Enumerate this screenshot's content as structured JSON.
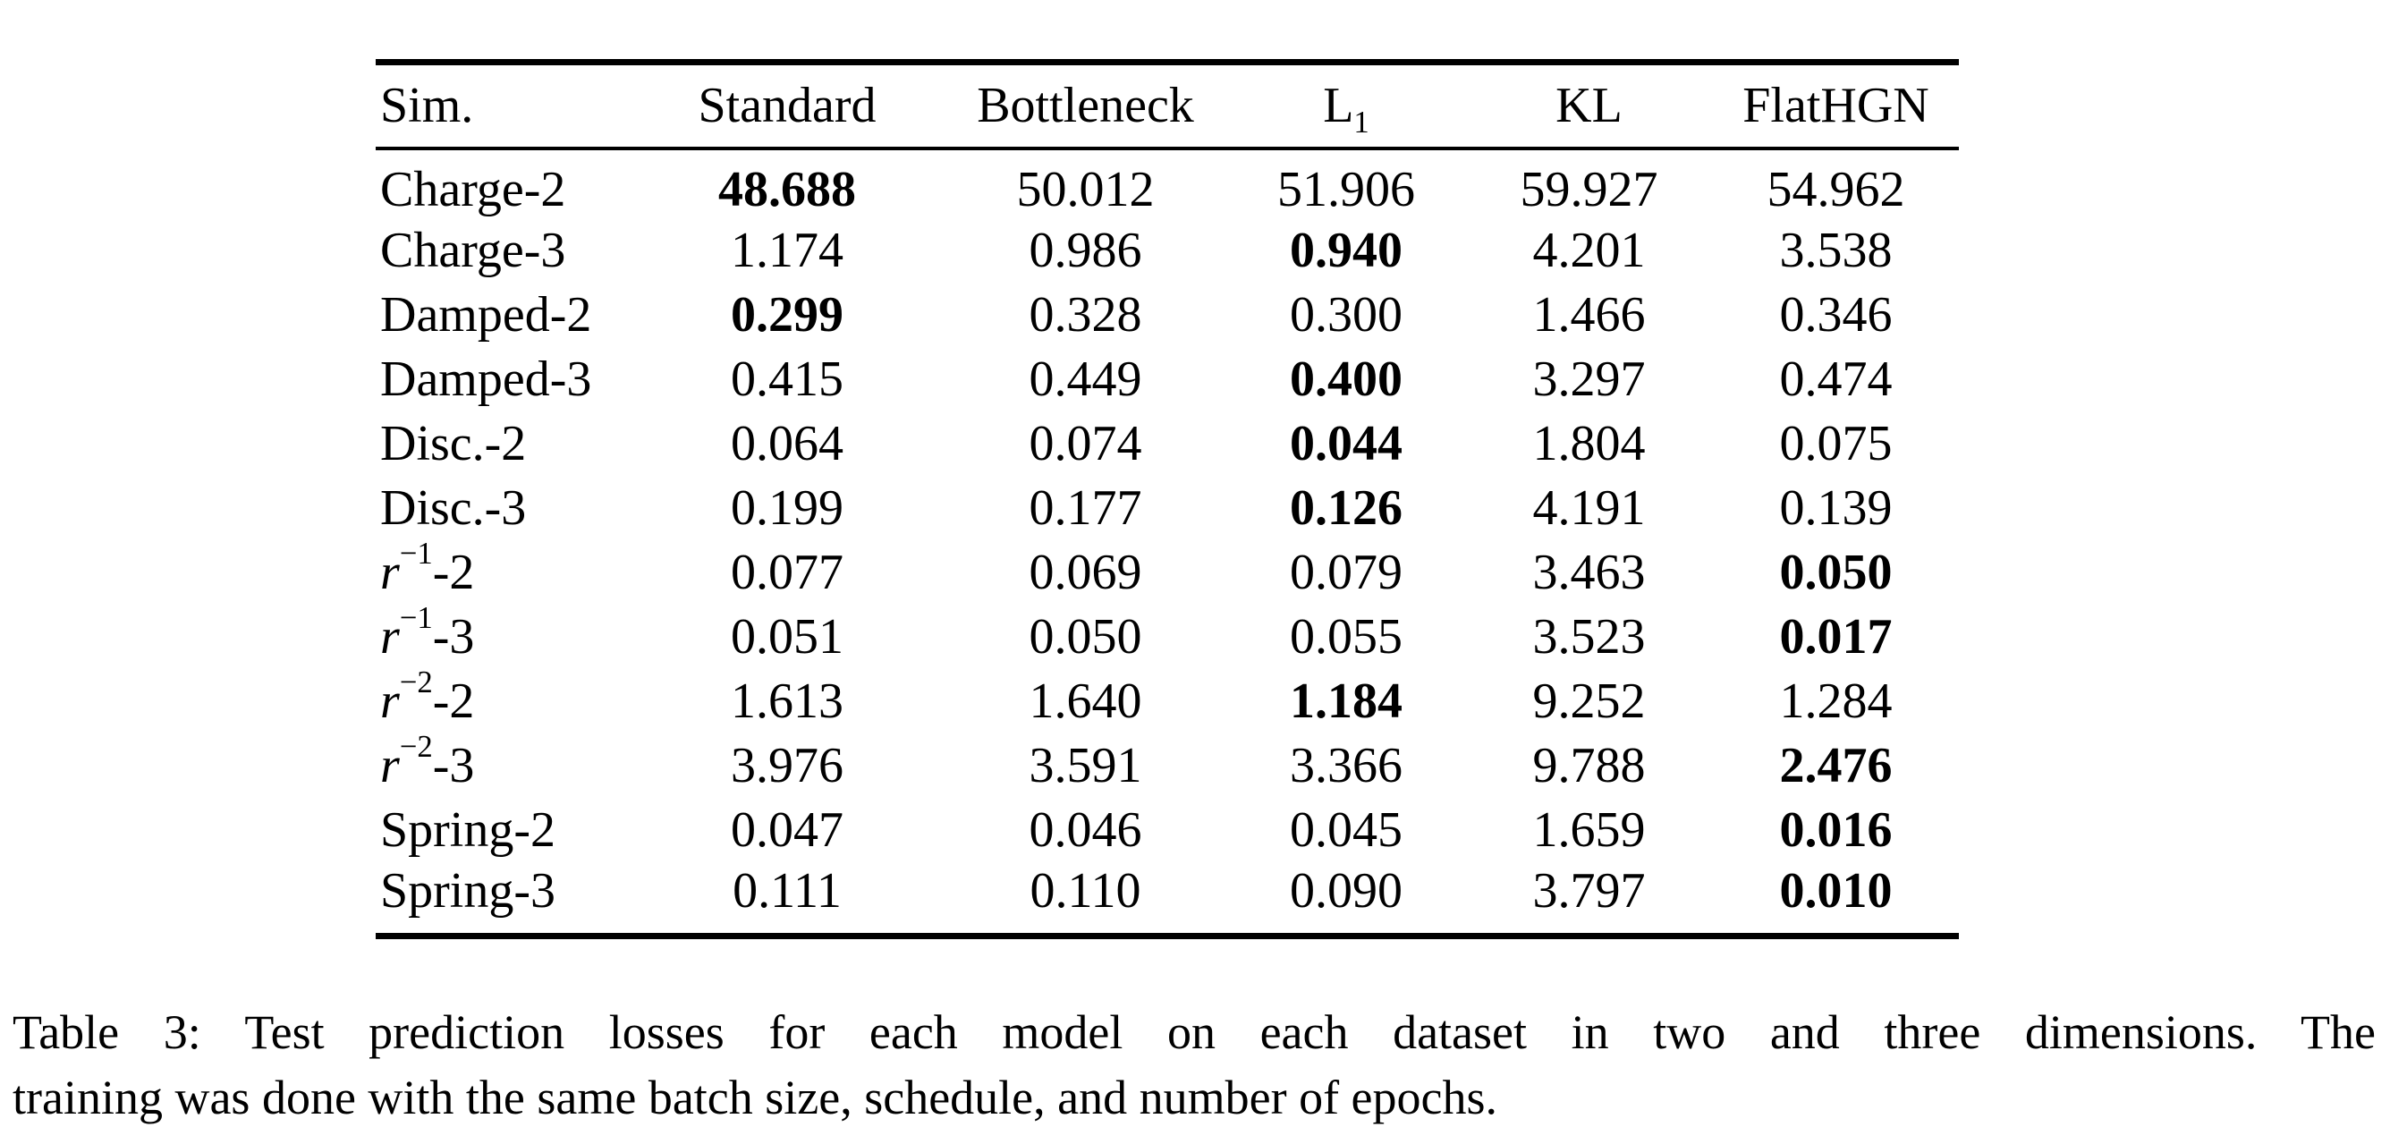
{
  "colors": {
    "text": "#000000",
    "background": "#ffffff"
  },
  "table": {
    "columns": [
      {
        "text": "Sim."
      },
      {
        "text": "Standard"
      },
      {
        "text": "Bottleneck"
      },
      {
        "text": "L",
        "sub": "1"
      },
      {
        "text": "KL"
      },
      {
        "text": "FlatHGN"
      }
    ],
    "rows": [
      {
        "label": {
          "text": "Charge-2"
        },
        "values": [
          {
            "v": "48.688",
            "bold": true
          },
          {
            "v": "50.012"
          },
          {
            "v": "51.906"
          },
          {
            "v": "59.927"
          },
          {
            "v": "54.962"
          }
        ]
      },
      {
        "label": {
          "text": "Charge-3"
        },
        "values": [
          {
            "v": "1.174"
          },
          {
            "v": "0.986"
          },
          {
            "v": "0.940",
            "bold": true
          },
          {
            "v": "4.201"
          },
          {
            "v": "3.538"
          }
        ]
      },
      {
        "label": {
          "text": "Damped-2"
        },
        "values": [
          {
            "v": "0.299",
            "bold": true
          },
          {
            "v": "0.328"
          },
          {
            "v": "0.300"
          },
          {
            "v": "1.466"
          },
          {
            "v": "0.346"
          }
        ]
      },
      {
        "label": {
          "text": "Damped-3"
        },
        "values": [
          {
            "v": "0.415"
          },
          {
            "v": "0.449"
          },
          {
            "v": "0.400",
            "bold": true
          },
          {
            "v": "3.297"
          },
          {
            "v": "0.474"
          }
        ]
      },
      {
        "label": {
          "text": "Disc.-2"
        },
        "values": [
          {
            "v": "0.064"
          },
          {
            "v": "0.074"
          },
          {
            "v": "0.044",
            "bold": true
          },
          {
            "v": "1.804"
          },
          {
            "v": "0.075"
          }
        ]
      },
      {
        "label": {
          "text": "Disc.-3"
        },
        "values": [
          {
            "v": "0.199"
          },
          {
            "v": "0.177"
          },
          {
            "v": "0.126",
            "bold": true
          },
          {
            "v": "4.191"
          },
          {
            "v": "0.139"
          }
        ]
      },
      {
        "label": {
          "text": "r",
          "italic": true,
          "sup": "−1",
          "post": "-2"
        },
        "values": [
          {
            "v": "0.077"
          },
          {
            "v": "0.069"
          },
          {
            "v": "0.079"
          },
          {
            "v": "3.463"
          },
          {
            "v": "0.050",
            "bold": true
          }
        ]
      },
      {
        "label": {
          "text": "r",
          "italic": true,
          "sup": "−1",
          "post": "-3"
        },
        "values": [
          {
            "v": "0.051"
          },
          {
            "v": "0.050"
          },
          {
            "v": "0.055"
          },
          {
            "v": "3.523"
          },
          {
            "v": "0.017",
            "bold": true
          }
        ]
      },
      {
        "label": {
          "text": "r",
          "italic": true,
          "sup": "−2",
          "post": "-2"
        },
        "values": [
          {
            "v": "1.613"
          },
          {
            "v": "1.640"
          },
          {
            "v": "1.184",
            "bold": true
          },
          {
            "v": "9.252"
          },
          {
            "v": "1.284"
          }
        ]
      },
      {
        "label": {
          "text": "r",
          "italic": true,
          "sup": "−2",
          "post": "-3"
        },
        "values": [
          {
            "v": "3.976"
          },
          {
            "v": "3.591"
          },
          {
            "v": "3.366"
          },
          {
            "v": "9.788"
          },
          {
            "v": "2.476",
            "bold": true
          }
        ]
      },
      {
        "label": {
          "text": "Spring-2"
        },
        "values": [
          {
            "v": "0.047"
          },
          {
            "v": "0.046"
          },
          {
            "v": "0.045"
          },
          {
            "v": "1.659"
          },
          {
            "v": "0.016",
            "bold": true
          }
        ]
      },
      {
        "label": {
          "text": "Spring-3"
        },
        "values": [
          {
            "v": "0.111"
          },
          {
            "v": "0.110"
          },
          {
            "v": "0.090"
          },
          {
            "v": "3.797"
          },
          {
            "v": "0.010",
            "bold": true
          }
        ]
      }
    ]
  },
  "caption": {
    "line1": "Table 3: Test prediction losses for each model on each dataset in two and three dimensions. The",
    "line2": "training was done with the same batch size, schedule, and number of epochs."
  }
}
